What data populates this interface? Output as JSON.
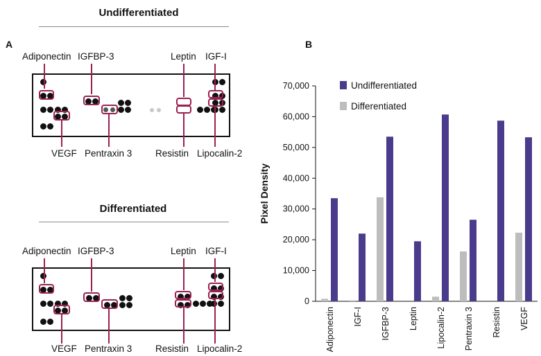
{
  "panel_a": {
    "letter": "A",
    "membranes": [
      {
        "title": "Undifferentiated",
        "labels_top": [
          "Adiponectin",
          "IGFBP-3",
          "Leptin",
          "IGF-I"
        ],
        "labels_bottom": [
          "VEGF",
          "Pentraxin 3",
          "Resistin",
          "Lipocalin-2"
        ]
      },
      {
        "title": "Differentiated",
        "labels_top": [
          "Adiponectin",
          "IGFBP-3",
          "Leptin",
          "IGF-I"
        ],
        "labels_bottom": [
          "VEGF",
          "Pentraxin 3",
          "Resistin",
          "Lipocalin-2"
        ]
      }
    ]
  },
  "panel_b": {
    "letter": "B"
  },
  "colors": {
    "undifferentiated": "#4b3b8c",
    "differentiated": "#bdbdbd",
    "highlight_box": "#9b2050"
  },
  "chart_data": {
    "type": "bar",
    "categories": [
      "Adiponectin",
      "IGF-I",
      "IGFBP-3",
      "Leptin",
      "Lipocalin-2",
      "Pentraxin 3",
      "Resistin",
      "VEGF"
    ],
    "series": [
      {
        "name": "Differentiated",
        "values": [
          800,
          300,
          33800,
          0,
          1500,
          16200,
          0,
          22300
        ]
      },
      {
        "name": "Undifferentiated",
        "values": [
          33500,
          22000,
          53500,
          19500,
          60700,
          26500,
          58700,
          53300
        ]
      }
    ],
    "ylabel": "Pixel Density",
    "ylim": [
      0,
      70000
    ],
    "yticks": [
      "0",
      "10,000",
      "20,000",
      "30,000",
      "40,000",
      "50,000",
      "60,000",
      "70,000"
    ],
    "legend": [
      "Undifferentiated",
      "Differentiated"
    ],
    "legend_position": "top-left",
    "grid": false
  }
}
